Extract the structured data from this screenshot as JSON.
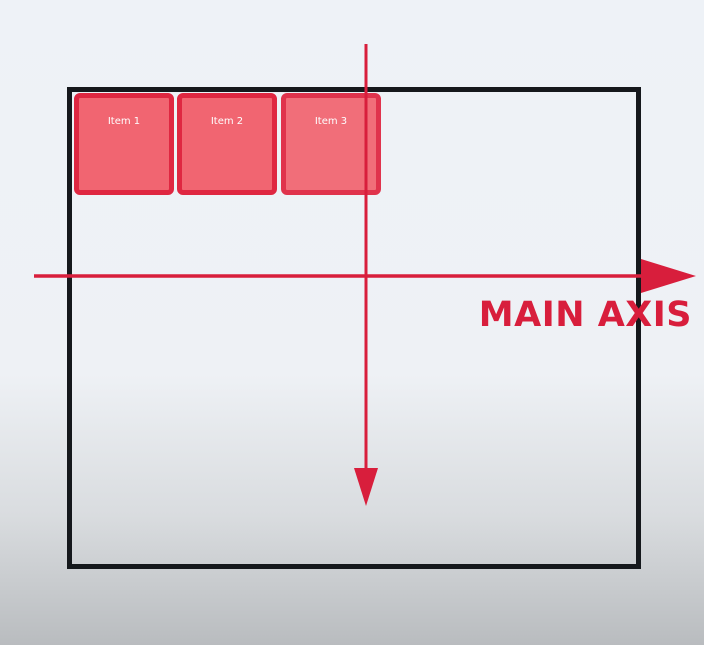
{
  "diagram": {
    "items": [
      {
        "label": "Item 1"
      },
      {
        "label": "Item 2"
      },
      {
        "label": "Item 3"
      }
    ],
    "main_axis_label": "MAIN AXIS",
    "colors": {
      "axis": "#d81e3c",
      "item_fill": "#f2606c",
      "item_border": "#df1f3a",
      "container_border": "#15181c"
    }
  }
}
